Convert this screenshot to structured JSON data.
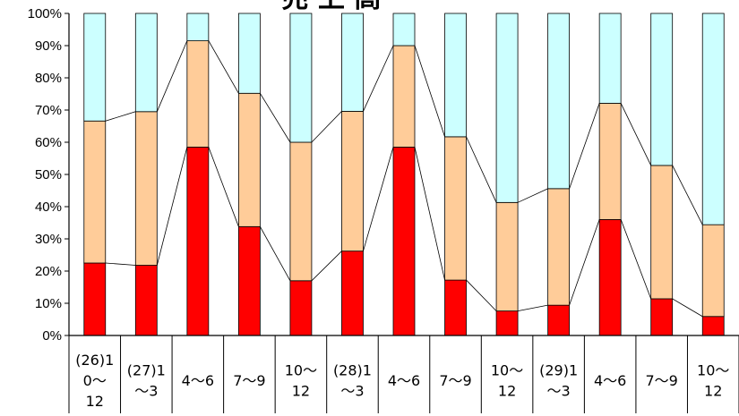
{
  "chart_data": {
    "type": "bar",
    "stacked": true,
    "title": "売 上 高",
    "categories": [
      [
        "(26)1",
        "0～",
        "12"
      ],
      [
        "(27)1",
        "～3"
      ],
      [
        "4～6"
      ],
      [
        "7～9"
      ],
      [
        "10～",
        "12"
      ],
      [
        "(28)1",
        "～3"
      ],
      [
        "4～6"
      ],
      [
        "7～9"
      ],
      [
        "10～",
        "12"
      ],
      [
        "(29)1",
        "～3"
      ],
      [
        "4～6"
      ],
      [
        "7～9"
      ],
      [
        "10～",
        "12"
      ]
    ],
    "series": [
      {
        "color": "#ff0000",
        "values": [
          22.5,
          21.8,
          58.5,
          33.8,
          17.0,
          26.2,
          58.5,
          17.2,
          7.6,
          9.4,
          36.0,
          11.4,
          5.9
        ]
      },
      {
        "color": "#ffcc99",
        "values": [
          44.1,
          47.7,
          33.0,
          41.4,
          43.0,
          43.4,
          31.5,
          44.5,
          33.7,
          36.2,
          36.1,
          41.4,
          28.5
        ]
      },
      {
        "color": "#ccffff",
        "values": [
          33.4,
          30.5,
          8.5,
          24.8,
          40.0,
          30.4,
          10.0,
          38.3,
          58.7,
          54.4,
          27.9,
          47.2,
          65.6
        ]
      }
    ],
    "y_ticks": [
      "0%",
      "10%",
      "20%",
      "30%",
      "40%",
      "50%",
      "60%",
      "70%",
      "80%",
      "90%",
      "100%"
    ],
    "ylim": [
      0,
      100
    ],
    "series_lines": true,
    "grid": false,
    "legend": "none"
  }
}
